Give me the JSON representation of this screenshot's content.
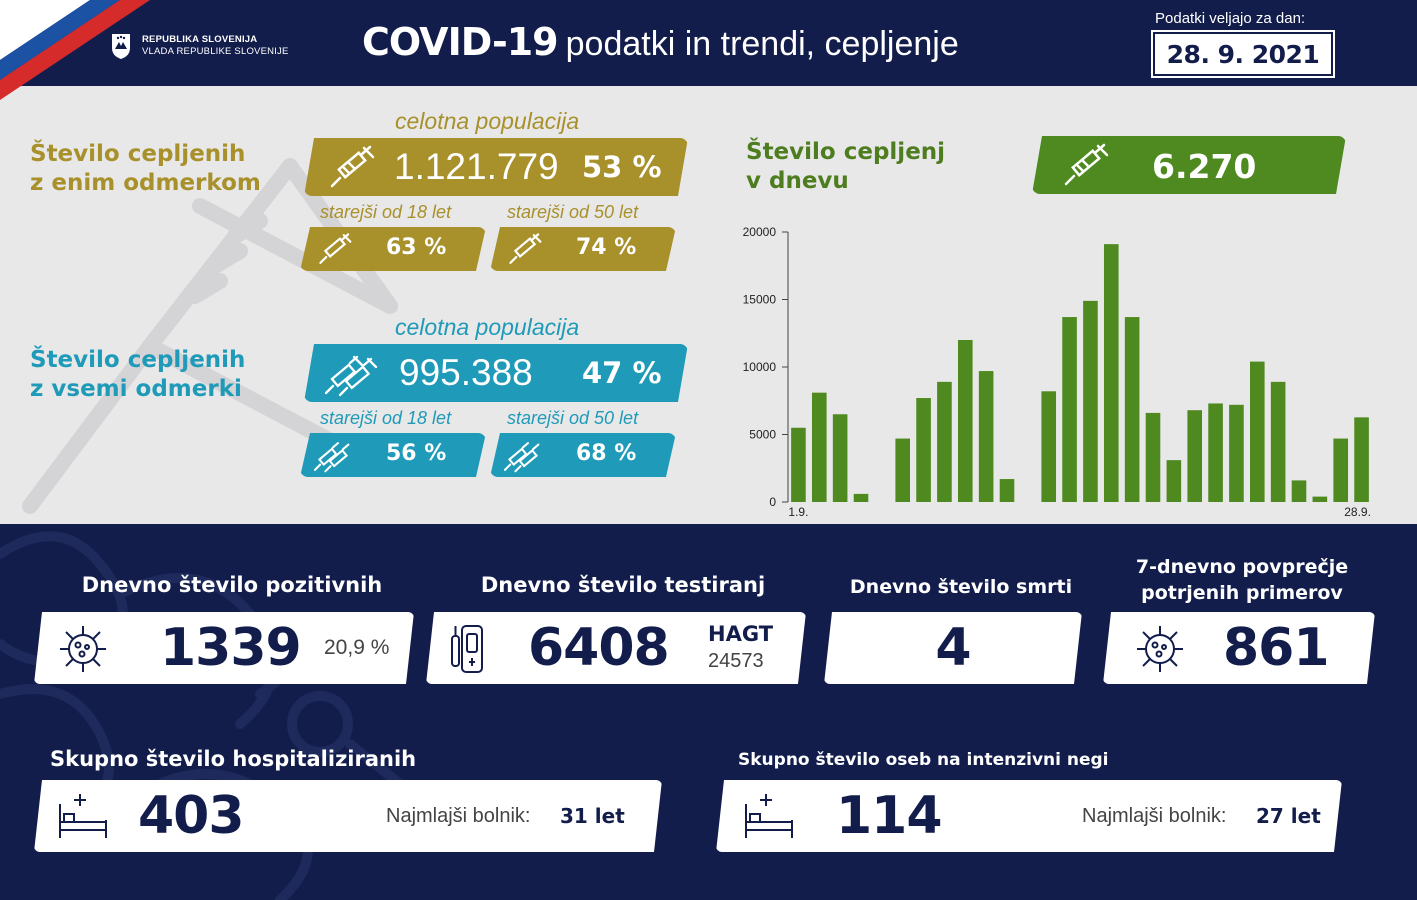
{
  "header": {
    "gov_line1": "REPUBLIKA SLOVENIJA",
    "gov_line2": "VLADA REPUBLIKE SLOVENIJE",
    "title_main": "COVID-19",
    "title_sub": "podatki in trendi, cepljenje",
    "date_label": "Podatki veljajo za dan:",
    "date_value": "28. 9. 2021"
  },
  "one_dose": {
    "label_line1": "Število cepljenih",
    "label_line2": "z enim odmerkom",
    "population_label": "celotna populacija",
    "count": "1.121.779",
    "percent": "53 %",
    "age18_label": "starejši od 18 let",
    "age18_percent": "63 %",
    "age50_label": "starejši od 50 let",
    "age50_percent": "74 %",
    "color": "#a8902b"
  },
  "all_doses": {
    "label_line1": "Število cepljenih",
    "label_line2": "z vsemi odmerki",
    "population_label": "celotna populacija",
    "count": "995.388",
    "percent": "47 %",
    "age18_label": "starejši od 18 let",
    "age18_percent": "56 %",
    "age50_label": "starejši od 50 let",
    "age50_percent": "68 %",
    "color": "#1f9ab8"
  },
  "daily_vacc": {
    "label_line1": "Število cepljenj",
    "label_line2": "v dnevu",
    "value": "6.270",
    "color": "#4e8a1f"
  },
  "chart_data": {
    "type": "bar",
    "categories": [
      "1.9.",
      "2.9.",
      "3.9.",
      "4.9.",
      "5.9.",
      "6.9.",
      "7.9.",
      "8.9.",
      "9.9.",
      "10.9.",
      "11.9.",
      "12.9.",
      "13.9.",
      "14.9.",
      "15.9.",
      "16.9.",
      "17.9.",
      "18.9.",
      "19.9.",
      "20.9.",
      "21.9.",
      "22.9.",
      "23.9.",
      "24.9.",
      "25.9.",
      "26.9.",
      "27.9.",
      "28.9."
    ],
    "values": [
      5500,
      8100,
      6500,
      600,
      0,
      4700,
      7700,
      8900,
      12000,
      9700,
      1700,
      0,
      8200,
      13700,
      14900,
      19100,
      13700,
      6600,
      3100,
      6800,
      7300,
      7200,
      10400,
      8900,
      1600,
      400,
      4700,
      6270
    ],
    "x_tick_labels": [
      "1.9.",
      "28.9."
    ],
    "y_ticks": [
      0,
      5000,
      10000,
      15000,
      20000
    ],
    "ylim": [
      0,
      20000
    ],
    "color": "#4e8a1f"
  },
  "stats": {
    "positive": {
      "title": "Dnevno število pozitivnih",
      "value": "1339",
      "percent": "20,9 %"
    },
    "tests": {
      "title": "Dnevno število testiranj",
      "value": "6408",
      "hagt_label": "HAGT",
      "hagt_value": "24573"
    },
    "deaths": {
      "title": "Dnevno število smrti",
      "value": "4"
    },
    "avg7": {
      "title_line1": "7-dnevno povprečje",
      "title_line2": "potrjenih primerov",
      "value": "861"
    },
    "hospital": {
      "title": "Skupno število hospitaliziranih",
      "value": "403",
      "youngest_label": "Najmlajši bolnik:",
      "youngest_value": "31 let"
    },
    "icu": {
      "title": "Skupno število oseb na intenzivni negi",
      "value": "114",
      "youngest_label": "Najmlajši bolnik:",
      "youngest_value": "27 let"
    }
  }
}
